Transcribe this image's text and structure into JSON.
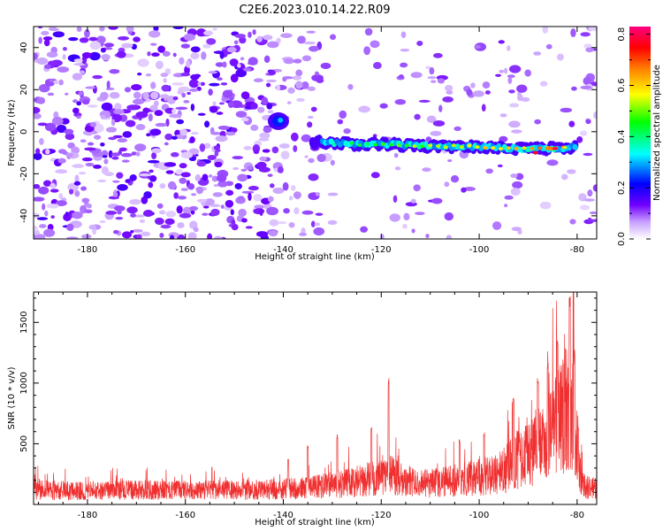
{
  "title": "C2E6.2023.010.14.22.R09",
  "chart_data": [
    {
      "type": "heatmap",
      "xlabel": "Height of straight line (km)",
      "ylabel": "Frequency (Hz)",
      "xlim": [
        -191,
        -76
      ],
      "ylim": [
        -51,
        50
      ],
      "xticks": [
        -180,
        -160,
        -140,
        -120,
        -100,
        -80
      ],
      "yticks": [
        -40,
        -20,
        0,
        20,
        40
      ],
      "description_series": [
        {
          "name": "spectral ridge",
          "x": [
            -133,
            -125,
            -118,
            -110,
            -100,
            -92,
            -85,
            -80
          ],
          "y": [
            -5,
            -6,
            -6,
            -7,
            -7,
            -8,
            -8,
            -7
          ]
        },
        {
          "name": "hot spot",
          "x": [
            -141
          ],
          "y": [
            5
          ]
        }
      ],
      "colorbar": {
        "label": "Normalized spectral amplitude",
        "range": [
          0.0,
          0.83
        ],
        "ticks": [
          0.0,
          0.2,
          0.4,
          0.6,
          0.8
        ],
        "colors": [
          "#ffffff",
          "#7000ff",
          "#0000ff",
          "#00ffff",
          "#00ff00",
          "#ffff00",
          "#ff8000",
          "#ff0000",
          "#ff0080"
        ]
      }
    },
    {
      "type": "line",
      "xlabel": "Height of straight line (km)",
      "ylabel": "SNR (10 * v/v)",
      "xlim": [
        -191,
        -76
      ],
      "ylim": [
        0,
        1750
      ],
      "xticks": [
        -180,
        -160,
        -140,
        -120,
        -100,
        -80
      ],
      "yticks": [
        500,
        1000,
        1500
      ],
      "color": "#f03030",
      "series": [
        {
          "name": "SNR envelope",
          "x": [
            -191,
            -180,
            -170,
            -160,
            -150,
            -140,
            -135,
            -130,
            -125,
            -122,
            -118,
            -115,
            -110,
            -105,
            -100,
            -97,
            -93,
            -90,
            -87,
            -85,
            -83,
            -81,
            -80,
            -79,
            -78,
            -77,
            -76
          ],
          "y": [
            150,
            140,
            150,
            145,
            150,
            160,
            170,
            200,
            230,
            260,
            300,
            230,
            220,
            250,
            280,
            300,
            420,
            550,
            650,
            750,
            950,
            1050,
            600,
            200,
            180,
            170,
            160
          ]
        }
      ],
      "peaks": [
        {
          "x": -118.5,
          "y": 1060
        },
        {
          "x": -122,
          "y": 650
        },
        {
          "x": -129,
          "y": 580
        },
        {
          "x": -135,
          "y": 500
        },
        {
          "x": -139,
          "y": 380
        },
        {
          "x": -104,
          "y": 540
        },
        {
          "x": -99,
          "y": 600
        },
        {
          "x": -93,
          "y": 900
        },
        {
          "x": -88,
          "y": 1040
        },
        {
          "x": -86,
          "y": 1200
        },
        {
          "x": -84,
          "y": 1400
        },
        {
          "x": -81.5,
          "y": 1750
        },
        {
          "x": -80.5,
          "y": 1300
        }
      ]
    }
  ]
}
